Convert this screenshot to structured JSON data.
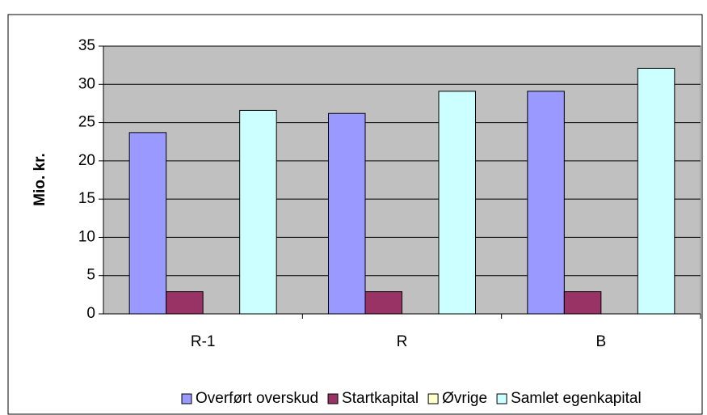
{
  "chart_data": {
    "type": "bar",
    "ylabel": "Mio. kr.",
    "categories": [
      "R-1",
      "R",
      "B"
    ],
    "series": [
      {
        "name": "Overført overskud",
        "color": "#9999ff",
        "values": [
          23.7,
          26.2,
          29.1
        ]
      },
      {
        "name": "Startkapital",
        "color": "#993366",
        "values": [
          2.9,
          2.9,
          2.9
        ]
      },
      {
        "name": "Øvrige",
        "color": "#ffffcc",
        "values": [
          0,
          0,
          0
        ]
      },
      {
        "name": "Samlet egenkapital",
        "color": "#ccffff",
        "values": [
          26.6,
          29.1,
          32.1
        ]
      }
    ],
    "ylim": [
      0,
      35
    ],
    "yticks": [
      0,
      5,
      10,
      15,
      20,
      25,
      30,
      35
    ],
    "grid": true,
    "plot_background": "#c0c0c0",
    "legend": "bottom"
  }
}
